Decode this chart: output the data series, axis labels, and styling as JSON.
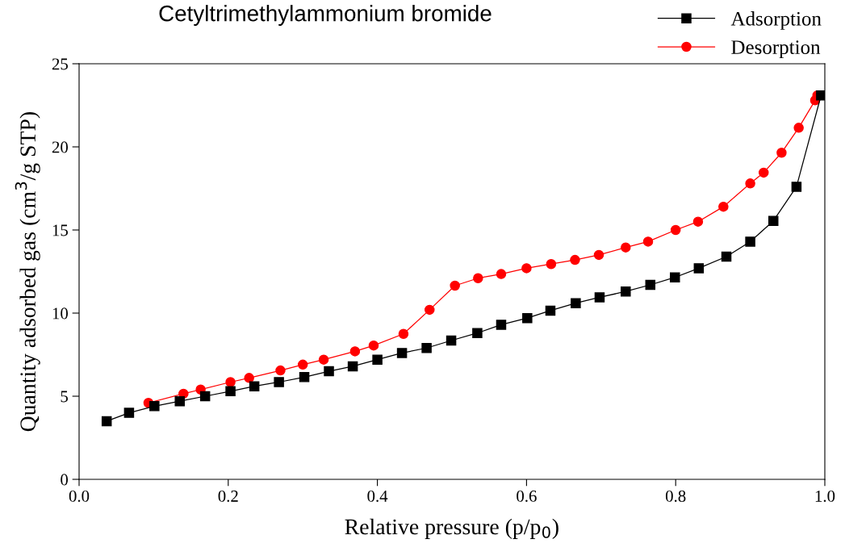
{
  "chart_data": {
    "type": "line",
    "title": "Cetyltrimethylammonium bromide",
    "xlabel": "Relative pressure (p/p$_{0}$)",
    "ylabel": "Quantity adsorbed gas (cm$^{3}$/g STP)",
    "xlim": [
      0.0,
      1.0
    ],
    "xticks": [
      {
        "value": 0.0,
        "label": "0.0"
      },
      {
        "value": 0.2,
        "label": "0.2"
      },
      {
        "value": 0.4,
        "label": "0.4"
      },
      {
        "value": 0.6,
        "label": "0.6"
      },
      {
        "value": 0.8,
        "label": "0.8"
      },
      {
        "value": 1.0,
        "label": "1.0"
      }
    ],
    "ylim": [
      0,
      25
    ],
    "yticks": [
      0,
      5,
      10,
      15,
      20,
      25
    ],
    "grid": false,
    "legend": "top right",
    "series": [
      {
        "name": "Adsorption",
        "color": "#000000",
        "marker": "square",
        "x": [
          0.037,
          0.067,
          0.101,
          0.135,
          0.169,
          0.203,
          0.235,
          0.268,
          0.302,
          0.335,
          0.367,
          0.4,
          0.433,
          0.466,
          0.499,
          0.534,
          0.566,
          0.601,
          0.632,
          0.666,
          0.698,
          0.733,
          0.766,
          0.799,
          0.831,
          0.868,
          0.9,
          0.931,
          0.962,
          0.995
        ],
        "values": [
          3.5,
          4.0,
          4.4,
          4.7,
          5.0,
          5.3,
          5.6,
          5.85,
          6.15,
          6.5,
          6.8,
          7.2,
          7.6,
          7.9,
          8.35,
          8.8,
          9.3,
          9.7,
          10.15,
          10.6,
          10.95,
          11.3,
          11.7,
          12.15,
          12.7,
          13.4,
          14.3,
          15.55,
          17.6,
          23.1
        ]
      },
      {
        "name": "Desorption",
        "color": "#ff0000",
        "marker": "circle",
        "x": [
          0.093,
          0.14,
          0.163,
          0.203,
          0.228,
          0.27,
          0.3,
          0.328,
          0.37,
          0.395,
          0.435,
          0.47,
          0.504,
          0.535,
          0.566,
          0.6,
          0.633,
          0.665,
          0.697,
          0.733,
          0.763,
          0.8,
          0.83,
          0.864,
          0.9,
          0.918,
          0.942,
          0.965,
          0.987,
          0.99
        ],
        "values": [
          4.6,
          5.15,
          5.4,
          5.85,
          6.1,
          6.55,
          6.9,
          7.2,
          7.7,
          8.05,
          8.75,
          10.2,
          11.65,
          12.1,
          12.35,
          12.7,
          12.95,
          13.2,
          13.5,
          13.95,
          14.3,
          15.0,
          15.5,
          16.4,
          17.8,
          18.45,
          19.65,
          21.15,
          22.8,
          23.1
        ]
      }
    ]
  }
}
